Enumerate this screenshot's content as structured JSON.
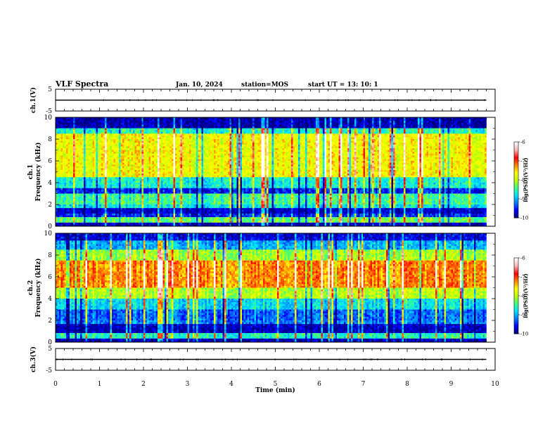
{
  "header": {
    "title": "VLF Spectra",
    "date": "Jan. 10, 2024",
    "station": "station=MOS",
    "start": "start  UT  =   13: 10: 1"
  },
  "colors": {
    "colormap": [
      "#000080",
      "#0000ff",
      "#0080ff",
      "#00e5ff",
      "#40ff80",
      "#c0ff00",
      "#ffff00",
      "#ff8000",
      "#ff0000",
      "#ffb0b0",
      "#ffffff"
    ]
  },
  "chart_data": [
    {
      "type": "line",
      "panel": "ch1-waveform",
      "ylabel": "ch.1(V)",
      "ylim": [
        -5,
        5
      ],
      "yticks": [
        "5",
        "-5"
      ],
      "series": [
        {
          "x": [
            0,
            9.8
          ],
          "y": [
            0,
            0
          ]
        }
      ]
    },
    {
      "type": "heatmap",
      "panel": "ch1-spectrogram",
      "ylabel_top": "ch.1",
      "ylabel": "Frequency (kHz)",
      "ylim": [
        0,
        10
      ],
      "yticks": [
        "0",
        "2",
        "4",
        "6",
        "8",
        "10"
      ],
      "xlim": [
        0,
        10
      ],
      "data_extent_min": 9.8,
      "bands": [
        {
          "f": [
            0,
            0.3
          ],
          "level": 0.05
        },
        {
          "f": [
            0.3,
            0.9
          ],
          "level": 0.42
        },
        {
          "f": [
            0.9,
            1.1
          ],
          "level": 0.12
        },
        {
          "f": [
            1.1,
            1.6
          ],
          "level": 0.06
        },
        {
          "f": [
            1.6,
            2.0
          ],
          "level": 0.3
        },
        {
          "f": [
            2.0,
            3.0
          ],
          "level": 0.38
        },
        {
          "f": [
            3.0,
            3.5
          ],
          "level": 0.12
        },
        {
          "f": [
            3.5,
            4.5
          ],
          "level": 0.33
        },
        {
          "f": [
            4.5,
            8.5
          ],
          "level": 0.58
        },
        {
          "f": [
            8.5,
            9.0
          ],
          "level": 0.35
        },
        {
          "f": [
            9.0,
            10.0
          ],
          "level": 0.03
        }
      ],
      "colorbar": {
        "label": "log(PSD)(V²/Hz)",
        "range": [
          -10,
          -6
        ],
        "ticks": [
          "-6",
          "-7",
          "-8",
          "-9",
          "-10"
        ]
      }
    },
    {
      "type": "heatmap",
      "panel": "ch2-spectrogram",
      "ylabel_top": "ch.2",
      "ylabel": "Frequency (kHz)",
      "ylim": [
        0,
        10
      ],
      "yticks": [
        "0",
        "2",
        "4",
        "6",
        "8",
        "10"
      ],
      "xlim": [
        0,
        10
      ],
      "data_extent_min": 9.8,
      "bands": [
        {
          "f": [
            0,
            0.3
          ],
          "level": 0.05
        },
        {
          "f": [
            0.3,
            0.9
          ],
          "level": 0.35
        },
        {
          "f": [
            0.9,
            1.6
          ],
          "level": 0.05
        },
        {
          "f": [
            1.6,
            2.0
          ],
          "level": 0.2
        },
        {
          "f": [
            2.0,
            3.0
          ],
          "level": 0.18
        },
        {
          "f": [
            3.0,
            4.0
          ],
          "level": 0.3
        },
        {
          "f": [
            4.0,
            5.0
          ],
          "level": 0.5
        },
        {
          "f": [
            5.0,
            7.5
          ],
          "level": 0.7
        },
        {
          "f": [
            7.5,
            8.5
          ],
          "level": 0.48
        },
        {
          "f": [
            8.5,
            9.3
          ],
          "level": 0.25
        },
        {
          "f": [
            9.3,
            10.0
          ],
          "level": 0.08
        }
      ],
      "colorbar": {
        "label": "log(PSD)(V²/Hz)",
        "range": [
          -10,
          -6
        ],
        "ticks": [
          "-6",
          "-7",
          "-8",
          "-9",
          "-10"
        ]
      }
    },
    {
      "type": "line",
      "panel": "ch3-waveform",
      "ylabel": "ch.3(V)",
      "ylim": [
        -5,
        5
      ],
      "yticks": [
        "5",
        "-5"
      ],
      "series": [
        {
          "x": [
            0,
            9.8
          ],
          "y": [
            0,
            0
          ]
        }
      ]
    }
  ],
  "xaxis": {
    "label": "Time (min)",
    "ticks": [
      "0",
      "1",
      "2",
      "3",
      "4",
      "5",
      "6",
      "7",
      "8",
      "9",
      "10"
    ],
    "xlim": [
      0,
      10
    ]
  }
}
